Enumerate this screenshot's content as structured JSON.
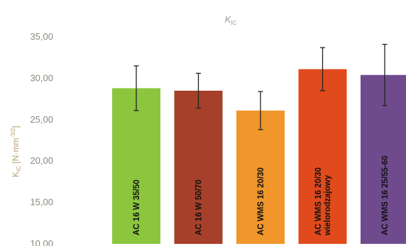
{
  "chart_data": {
    "type": "bar",
    "title": "K",
    "title_subscript": "IC",
    "ylabel_main": "K",
    "ylabel_sub": "IC",
    "ylabel_unit": " [N·mm",
    "ylabel_exp": "-3/2",
    "ylabel_close": "]",
    "ylim": [
      10,
      35
    ],
    "yticks": [
      "10,00",
      "15,00",
      "20,00",
      "25,00",
      "30,00",
      "35,00"
    ],
    "ytick_values": [
      10,
      15,
      20,
      25,
      30,
      35
    ],
    "grid": false,
    "legend": "none",
    "series": [
      {
        "categories": [
          [
            "AC 16 W 35/50"
          ],
          [
            "AC 16 W 50/70"
          ],
          [
            "AC WMS 16 20/30"
          ],
          [
            "AC WMS 16 20/30",
            "wielorodzajowy"
          ],
          [
            "AC WMS 16 25/55-60"
          ]
        ],
        "values": [
          28.8,
          28.5,
          26.1,
          31.1,
          30.4
        ],
        "error": [
          2.7,
          2.1,
          2.3,
          2.6,
          3.7
        ],
        "colors": [
          "#8cc63f",
          "#a6402a",
          "#f0962a",
          "#e04a1c",
          "#6f4b8e"
        ]
      }
    ]
  }
}
